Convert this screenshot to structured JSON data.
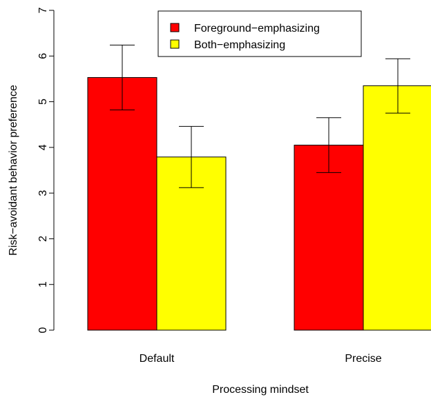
{
  "chart_data": {
    "type": "bar",
    "title": "",
    "xlabel": "Processing mindset",
    "ylabel": "Risk−avoidant behavior preference",
    "ylim": [
      0,
      7
    ],
    "yticks": [
      0,
      1,
      2,
      3,
      4,
      5,
      6,
      7
    ],
    "grid": false,
    "legend_position": "top-center",
    "categories": [
      "Default",
      "Precise"
    ],
    "series": [
      {
        "name": "Foreground−emphasizing",
        "color": "#ff0000",
        "values": [
          5.53,
          4.05
        ],
        "error_low": [
          4.82,
          3.45
        ],
        "error_high": [
          6.24,
          4.65
        ]
      },
      {
        "name": "Both−emphasizing",
        "color": "#ffff00",
        "values": [
          3.79,
          5.35
        ],
        "error_low": [
          3.12,
          4.75
        ],
        "error_high": [
          4.46,
          5.94
        ]
      }
    ]
  }
}
